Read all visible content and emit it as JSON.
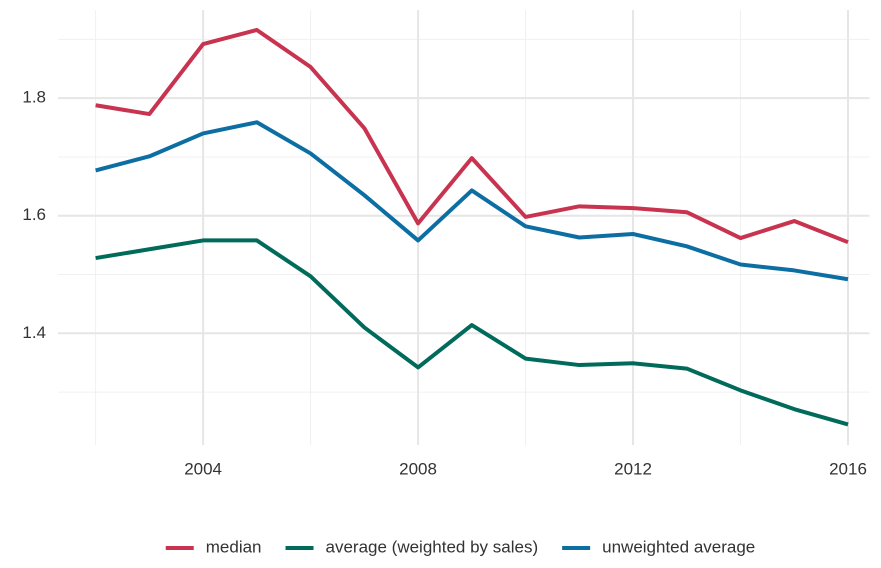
{
  "chart_data": {
    "type": "line",
    "x": [
      2002,
      2003,
      2004,
      2005,
      2006,
      2007,
      2008,
      2009,
      2010,
      2011,
      2012,
      2013,
      2014,
      2015,
      2016
    ],
    "series": [
      {
        "name": "median",
        "color": "#c8334f",
        "values": [
          1.788,
          1.773,
          1.892,
          1.916,
          1.853,
          1.749,
          1.587,
          1.698,
          1.598,
          1.616,
          1.613,
          1.606,
          1.562,
          1.591,
          1.555
        ]
      },
      {
        "name": "average (weighted by sales)",
        "color": "#006a5b",
        "values": [
          1.528,
          1.543,
          1.558,
          1.558,
          1.497,
          1.41,
          1.342,
          1.414,
          1.357,
          1.346,
          1.349,
          1.34,
          1.303,
          1.271,
          1.245
        ]
      },
      {
        "name": "unweighted average",
        "color": "#0d6ea3",
        "values": [
          1.677,
          1.701,
          1.74,
          1.759,
          1.706,
          1.635,
          1.558,
          1.643,
          1.582,
          1.563,
          1.569,
          1.548,
          1.517,
          1.507,
          1.492
        ]
      }
    ],
    "xlim": [
      2001.3,
      2016.4
    ],
    "xticks": [
      2004,
      2008,
      2012,
      2016
    ],
    "xminorticks": [
      2002,
      2006,
      2010,
      2014
    ],
    "ylim": [
      1.21,
      1.95
    ],
    "yticks": [
      {
        "value": 1.4,
        "label": "1.4"
      },
      {
        "value": 1.6,
        "label": "1.6"
      },
      {
        "value": 1.8,
        "label": "1.8"
      }
    ],
    "yminorticks": [
      1.3,
      1.5,
      1.7,
      1.9
    ],
    "grid": true,
    "legend": "bottom"
  }
}
